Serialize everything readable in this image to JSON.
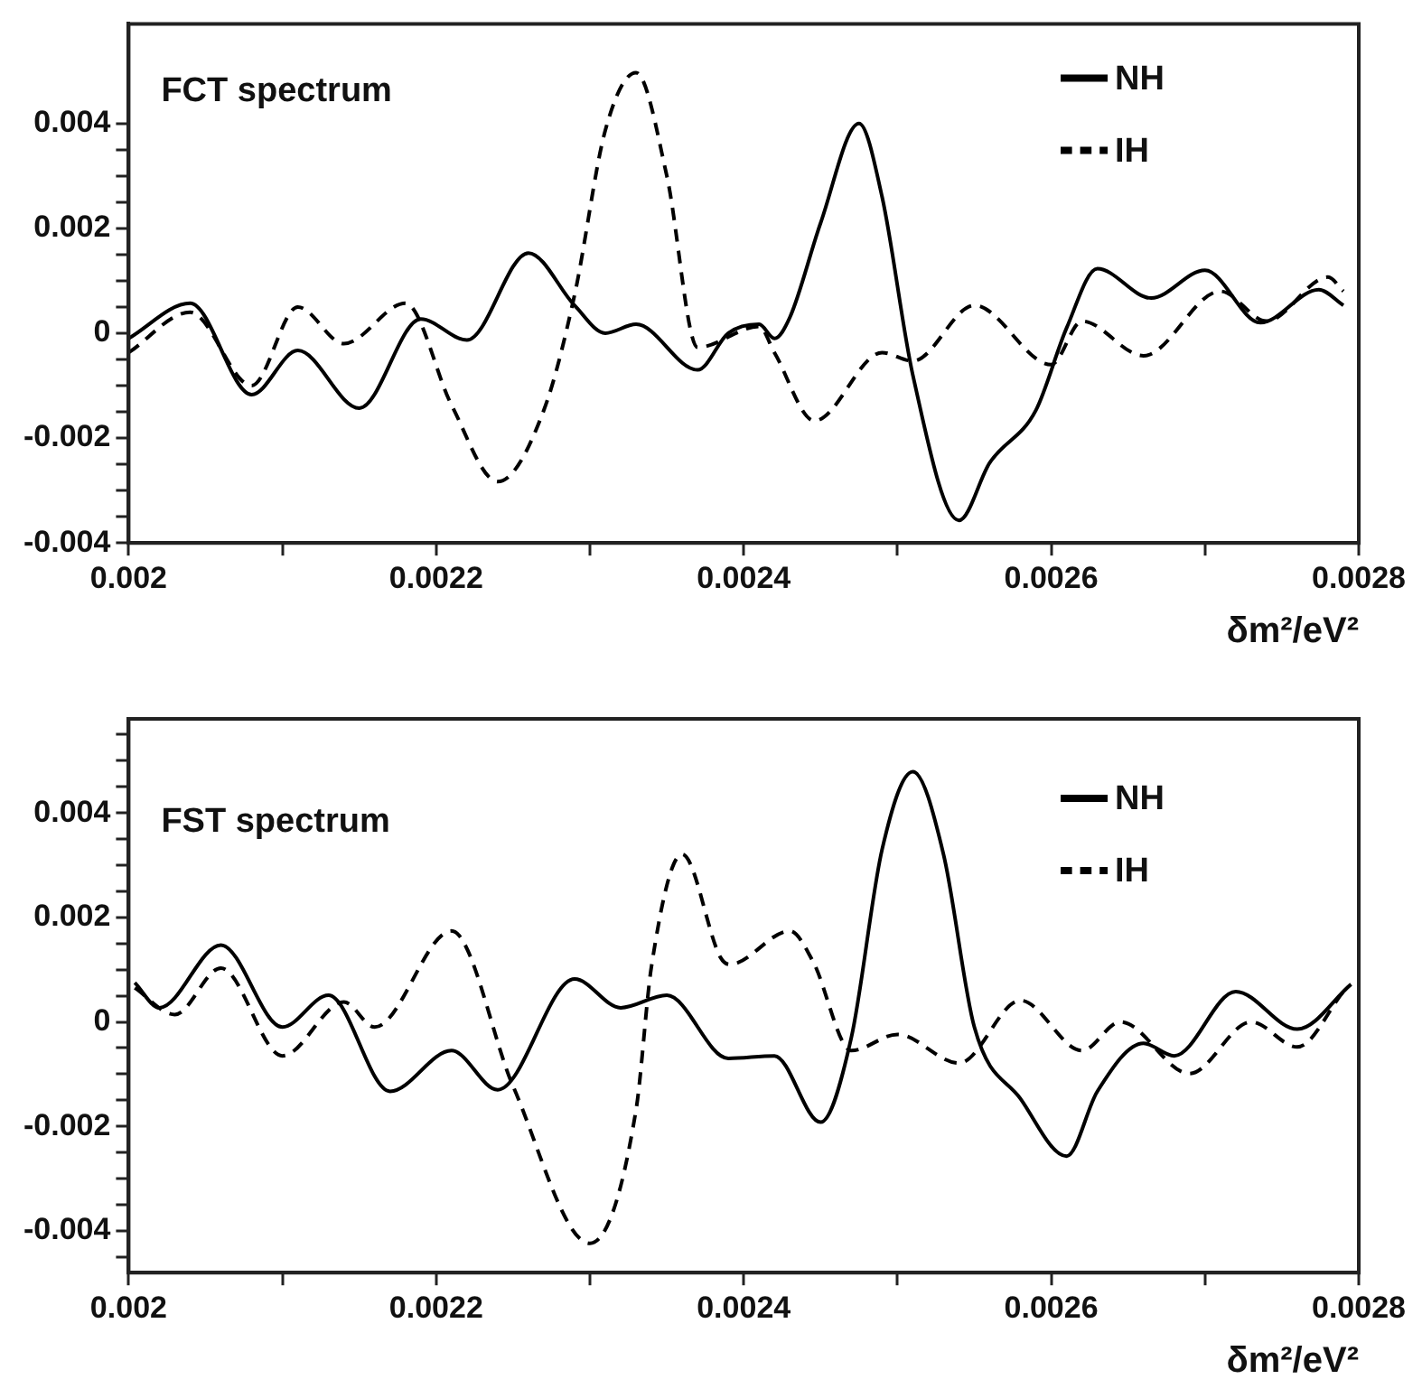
{
  "chart_data": [
    {
      "type": "line",
      "title": "FCT spectrum",
      "xlabel": "δm²/eV²",
      "legend": "top right",
      "xlim": [
        0.002,
        0.0028
      ],
      "xticks": [
        0.002,
        {
          "value": 0.0021,
          "label": null
        },
        0.0022,
        {
          "value": 0.0023,
          "label": null
        },
        0.0024,
        {
          "value": 0.0025,
          "label": null
        },
        0.0026,
        {
          "value": 0.0027,
          "label": null
        },
        0.0028
      ],
      "ylim": [
        -0.004,
        0.0059
      ],
      "yticks": [
        -0.004,
        {
          "value": -0.0035,
          "label": null
        },
        {
          "value": -0.003,
          "label": null
        },
        {
          "value": -0.0025,
          "label": null
        },
        -0.002,
        {
          "value": -0.0015,
          "label": null
        },
        {
          "value": -0.001,
          "label": null
        },
        {
          "value": -0.0005,
          "label": null
        },
        0,
        {
          "value": 0.0005,
          "label": null
        },
        {
          "value": 0.001,
          "label": null
        },
        {
          "value": 0.0015,
          "label": null
        },
        0.002,
        {
          "value": 0.0025,
          "label": null
        },
        {
          "value": 0.003,
          "label": null
        },
        {
          "value": 0.0035,
          "label": null
        },
        0.004
      ],
      "series": [
        {
          "name": "NH",
          "color": "#000000",
          "line_style": "solid",
          "x": [
            0.002,
            0.00204,
            0.00208,
            0.00211,
            0.00215,
            0.00219,
            0.00222,
            0.00226,
            0.00229,
            0.00231,
            0.00233,
            0.00237,
            0.00239,
            0.00241,
            0.00242,
            0.00243,
            0.00245,
            0.002475,
            0.00249,
            0.00251,
            0.00254,
            0.00256,
            0.00259,
            0.00261,
            0.00263,
            0.002665,
            0.0027,
            0.002736,
            0.002774,
            0.00279
          ],
          "values": [
            -0.0001,
            0.00057,
            -0.00117,
            -0.00033,
            -0.00143,
            0.00027,
            -0.00013,
            0.00153,
            0.00053,
            0,
            0.00017,
            -0.0007,
            0,
            0.00017,
            -0.0001,
            0.0003,
            0.0021,
            0.004,
            0.0026,
            -0.0008,
            -0.00357,
            -0.00247,
            -0.00147,
            0.0001,
            0.00123,
            0.00067,
            0.0012,
            0.0002,
            0.00083,
            0.00053
          ]
        },
        {
          "name": "IH",
          "color": "#000000",
          "line_style": "dashed",
          "x": [
            0.002,
            0.00204,
            0.00208,
            0.00211,
            0.00214,
            0.00218,
            0.00221,
            0.00224,
            0.00227,
            0.00229,
            0.00231,
            0.00233,
            0.00235,
            0.00237,
            0.00241,
            0.00242,
            0.002446,
            0.00249,
            0.00251,
            0.00255,
            0.0026,
            0.00262,
            0.00266,
            0.00271,
            0.00274,
            0.00278,
            0.00279
          ],
          "values": [
            -0.00037,
            0.0004,
            -0.001,
            0.0005,
            -0.0002,
            0.00057,
            -0.00137,
            -0.00283,
            -0.00147,
            0.00073,
            0.00387,
            0.00497,
            0.003,
            -0.00027,
            0.00013,
            -0.00037,
            -0.00167,
            -0.00037,
            -0.00053,
            0.00053,
            -0.0006,
            0.00023,
            -0.00043,
            0.0008,
            0.00023,
            0.00107,
            0.0008
          ]
        }
      ]
    },
    {
      "type": "line",
      "title": "FST spectrum",
      "xlabel": "δm²/eV²",
      "legend": "top right",
      "xlim": [
        0.002,
        0.0028
      ],
      "xticks": [
        0.002,
        {
          "value": 0.0021,
          "label": null
        },
        0.0022,
        {
          "value": 0.0023,
          "label": null
        },
        0.0024,
        {
          "value": 0.0025,
          "label": null
        },
        0.0026,
        {
          "value": 0.0027,
          "label": null
        },
        0.0028
      ],
      "ylim": [
        -0.0048,
        0.0058
      ],
      "yticks": [
        {
          "value": -0.0045,
          "label": null
        },
        -0.004,
        {
          "value": -0.0035,
          "label": null
        },
        {
          "value": -0.003,
          "label": null
        },
        {
          "value": -0.0025,
          "label": null
        },
        -0.002,
        {
          "value": -0.0015,
          "label": null
        },
        {
          "value": -0.001,
          "label": null
        },
        {
          "value": -0.0005,
          "label": null
        },
        0,
        {
          "value": 0.0005,
          "label": null
        },
        {
          "value": 0.001,
          "label": null
        },
        {
          "value": 0.0015,
          "label": null
        },
        0.002,
        {
          "value": 0.0025,
          "label": null
        },
        {
          "value": 0.003,
          "label": null
        },
        {
          "value": 0.0035,
          "label": null
        },
        0.004,
        {
          "value": 0.0045,
          "label": null
        },
        {
          "value": 0.005,
          "label": null
        },
        {
          "value": 0.0055,
          "label": null
        }
      ],
      "series": [
        {
          "name": "NH",
          "color": "#000000",
          "line_style": "solid",
          "x": [
            0.002004,
            0.00202,
            0.00206,
            0.0021,
            0.00213,
            0.00217,
            0.00221,
            0.00224,
            0.00229,
            0.00232,
            0.00235,
            0.00239,
            0.00242,
            0.00245,
            0.00247,
            0.00249,
            0.00251,
            0.00253,
            0.00255,
            0.00258,
            0.00261,
            0.00263,
            0.00266,
            0.00268,
            0.00272,
            0.00276,
            0.002795
          ],
          "values": [
            0.00075,
            0.00027,
            0.00147,
            -0.0001,
            0.00051,
            -0.00133,
            -0.00055,
            -0.0013,
            0.00082,
            0.00027,
            0.00051,
            -0.0007,
            -0.00065,
            -0.00192,
            -0.0003,
            0.0033,
            0.00479,
            0.0032,
            -0.0001,
            -0.00147,
            -0.00257,
            -0.00133,
            -0.00041,
            -0.00065,
            0.00058,
            -0.00014,
            0.00072
          ]
        },
        {
          "name": "IH",
          "color": "#000000",
          "line_style": "dashed",
          "x": [
            0.002004,
            0.00203,
            0.00206,
            0.0021,
            0.00214,
            0.00216,
            0.00221,
            0.00225,
            0.0023,
            0.00233,
            0.00234,
            0.00236,
            0.002385,
            0.002391,
            0.00243,
            0.002445,
            0.00247,
            0.0025,
            0.00254,
            0.00258,
            0.00262,
            0.002645,
            0.00269,
            0.00273,
            0.00276,
            0.00279
          ],
          "values": [
            0.00065,
            0.00014,
            0.00103,
            -0.00065,
            0.00038,
            -0.0001,
            0.00174,
            -0.00123,
            -0.00424,
            -0.00168,
            0.00106,
            0.00321,
            0.00123,
            0.0011,
            0.00174,
            0.00116,
            -0.00055,
            -0.00024,
            -0.00079,
            0.00041,
            -0.00055,
            0,
            -0.00099,
            0,
            -0.00048,
            0.00058
          ]
        }
      ]
    }
  ]
}
